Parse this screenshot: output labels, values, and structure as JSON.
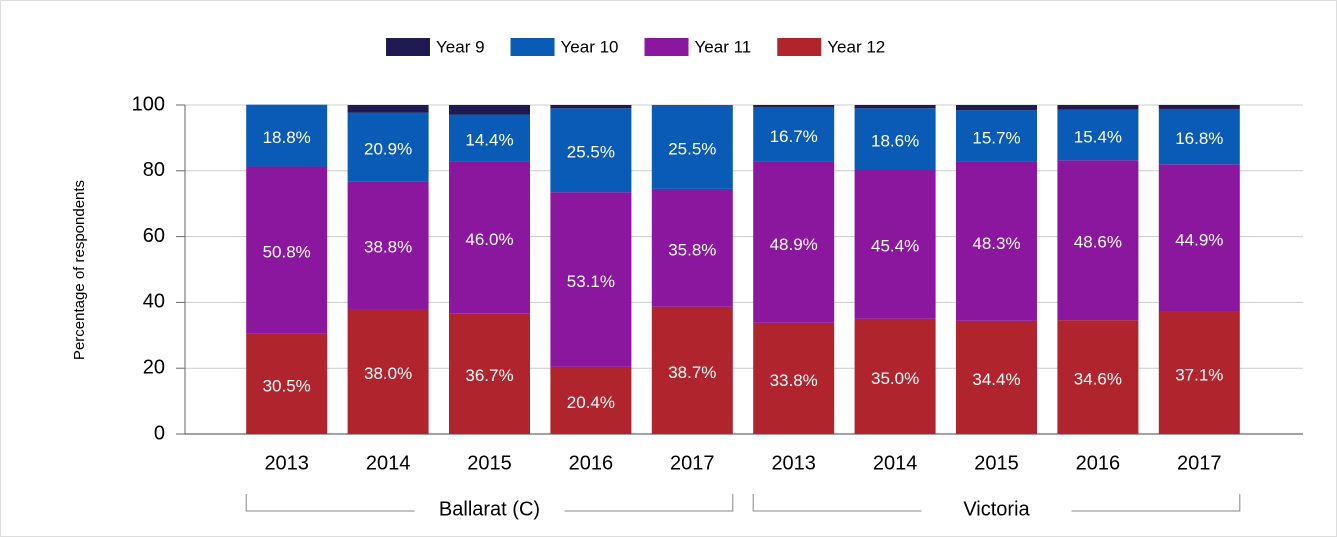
{
  "chart_data": {
    "type": "stacked_bar",
    "y_label": "Percentage of respondents",
    "categories": [
      "2013",
      "2014",
      "2015",
      "2016",
      "2017",
      "2013",
      "2014",
      "2015",
      "2016",
      "2017"
    ],
    "groups": [
      "Ballarat (C)",
      "Victoria"
    ],
    "series": [
      {
        "name": "Year 12",
        "color": "#b0252d",
        "values": [
          30.5,
          38.0,
          36.7,
          20.4,
          38.7,
          33.8,
          35.0,
          34.4,
          34.6,
          37.1
        ],
        "value_labels": [
          "30.5%",
          "38.0%",
          "36.7%",
          "20.4%",
          "38.7%",
          "33.8%",
          "35.0%",
          "34.4%",
          "34.6%",
          "37.1%"
        ]
      },
      {
        "name": "Year 11",
        "color": "#8a179e",
        "values": [
          50.8,
          38.8,
          46.0,
          53.1,
          35.8,
          48.9,
          45.4,
          48.3,
          48.6,
          44.9
        ],
        "value_labels": [
          "50.8%",
          "38.8%",
          "46.0%",
          "53.1%",
          "35.8%",
          "48.9%",
          "45.4%",
          "48.3%",
          "48.6%",
          "44.9%"
        ]
      },
      {
        "name": "Year 10",
        "color": "#0a5bb5",
        "values": [
          18.8,
          20.9,
          14.4,
          25.5,
          25.5,
          16.7,
          18.6,
          15.7,
          15.4,
          16.8
        ],
        "value_labels": [
          "18.8%",
          "20.9%",
          "14.4%",
          "25.5%",
          "25.5%",
          "16.7%",
          "18.6%",
          "15.7%",
          "15.4%",
          "16.8%"
        ]
      },
      {
        "name": "Year 9",
        "color": "#1f1a4f",
        "values": [
          0,
          2.3,
          2.9,
          1.0,
          0,
          0.6,
          1.0,
          1.6,
          1.4,
          1.2
        ]
      }
    ],
    "legend_order": [
      "Year 9",
      "Year 10",
      "Year 11",
      "Year 12"
    ],
    "ylim": [
      0,
      100
    ],
    "yticks": [
      0,
      20,
      40,
      60,
      80,
      100
    ],
    "grid": true,
    "legend": "top"
  }
}
